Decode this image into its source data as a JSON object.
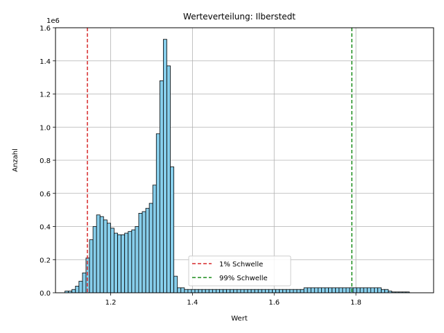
{
  "chart_data": {
    "type": "bar",
    "title": "Werteverteilung: Ilberstedt",
    "xlabel": "Wert",
    "ylabel": "Anzahl",
    "y_offset_label": "1e6",
    "xlim": [
      1.065,
      1.99
    ],
    "ylim": [
      0,
      1.6
    ],
    "y_unit_multiplier": 1000000,
    "x_ticks": [
      1.2,
      1.4,
      1.6,
      1.8
    ],
    "x_tick_labels": [
      "1.2",
      "1.4",
      "1.6",
      "1.8"
    ],
    "y_ticks": [
      0,
      0.2,
      0.4,
      0.6,
      0.8,
      1.0,
      1.2,
      1.4,
      1.6
    ],
    "y_tick_labels": [
      "0.0",
      "0.2",
      "0.4",
      "0.6",
      "0.8",
      "1.0",
      "1.2",
      "1.4",
      "1.6"
    ],
    "grid": true,
    "bar_color": "#87CEEB",
    "bar_edge_color": "#000000",
    "bin_start": 1.088,
    "bin_width": 0.0086,
    "values": [
      0.01,
      0.01,
      0.02,
      0.04,
      0.07,
      0.12,
      0.21,
      0.32,
      0.4,
      0.47,
      0.46,
      0.44,
      0.42,
      0.39,
      0.36,
      0.35,
      0.35,
      0.36,
      0.37,
      0.38,
      0.4,
      0.48,
      0.49,
      0.51,
      0.54,
      0.65,
      0.96,
      1.28,
      1.53,
      1.37,
      0.76,
      0.1,
      0.03,
      0.03,
      0.02,
      0.02,
      0.02,
      0.02,
      0.02,
      0.02,
      0.02,
      0.02,
      0.02,
      0.02,
      0.02,
      0.02,
      0.02,
      0.02,
      0.02,
      0.02,
      0.02,
      0.02,
      0.02,
      0.02,
      0.02,
      0.02,
      0.02,
      0.02,
      0.02,
      0.02,
      0.02,
      0.02,
      0.02,
      0.02,
      0.02,
      0.02,
      0.02,
      0.02,
      0.03,
      0.03,
      0.03,
      0.03,
      0.03,
      0.03,
      0.03,
      0.03,
      0.03,
      0.03,
      0.03,
      0.03,
      0.03,
      0.03,
      0.03,
      0.03,
      0.03,
      0.03,
      0.03,
      0.03,
      0.03,
      0.03,
      0.02,
      0.02,
      0.01,
      0.005,
      0.005,
      0.005,
      0.005,
      0.005
    ],
    "threshold_lines": [
      {
        "name": "1% Schwelle",
        "x": 1.143,
        "color": "#d62728"
      },
      {
        "name": "99% Schwelle",
        "x": 1.79,
        "color": "#1a8c1a"
      }
    ],
    "legend_position": "lower center"
  }
}
